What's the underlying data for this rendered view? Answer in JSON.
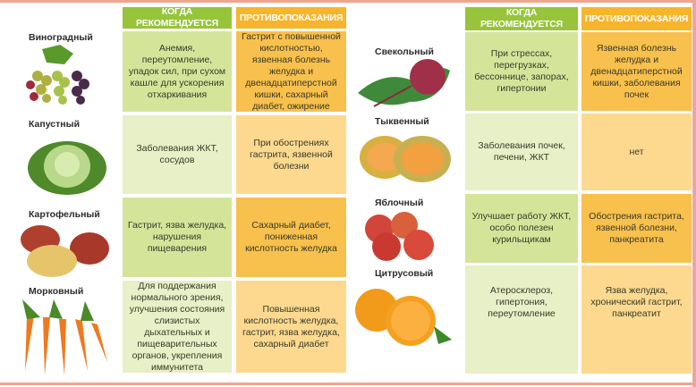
{
  "headers": {
    "recommended": "КОГДА РЕКОМЕНДУЕТСЯ",
    "contra": "ПРОТИВОПОКАЗАНИЯ"
  },
  "colors": {
    "green_header": "#97c43a",
    "orange_header": "#f7b52b",
    "frame": "#f0a58c"
  },
  "left": [
    {
      "name": "Виноградный",
      "icon": "grapes-icon",
      "recommended": "Анемия, переутомление, упадок сил, при сухом кашле для ускорения отхаркивания",
      "contra": "Гастрит с повышенной кислотностью, язвенная болезнь желудка и двенадцатиперстной кишки, сахарный диабет, ожирение"
    },
    {
      "name": "Капустный",
      "icon": "cabbage-icon",
      "recommended": "Заболевания ЖКТ, сосудов",
      "contra": "При обострениях гастрита, язвенной болезни"
    },
    {
      "name": "Картофельный",
      "icon": "potato-icon",
      "recommended": "Гастрит, язва желудка, нарушения пищеварения",
      "contra": "Сахарный диабет, пониженная кислотность желудка"
    },
    {
      "name": "Морковный",
      "icon": "carrot-icon",
      "recommended": "Для поддержания нормального зрения, улучшения состояния слизистых дыхательных и пищеварительных органов, укрепления иммунитета",
      "contra": "Повышенная кислотность желудка, гастрит, язва желудка, сахарный диабет"
    }
  ],
  "right": [
    {
      "name": "Свекольный",
      "icon": "beet-icon",
      "recommended": "При стрессах, перегрузках, бессоннице, запорах, гипертонии",
      "contra": "Язвенная болезнь желудка и двенадцатиперстной кишки, заболевания почек"
    },
    {
      "name": "Тыквенный",
      "icon": "melon-icon",
      "recommended": "Заболевания почек, печени, ЖКТ",
      "contra": "нет"
    },
    {
      "name": "Яблочный",
      "icon": "apple-icon",
      "recommended": "Улучшает работу ЖКТ, особо полезен курильщикам",
      "contra": "Обострения гастрита, язвенной болезни, панкреатита"
    },
    {
      "name": "Цитрусовый",
      "icon": "orange-icon",
      "recommended": "Атеросклероз, гипертония, переутомление",
      "contra": "Язва желудка, хронический гастрит, панкреатит"
    }
  ]
}
